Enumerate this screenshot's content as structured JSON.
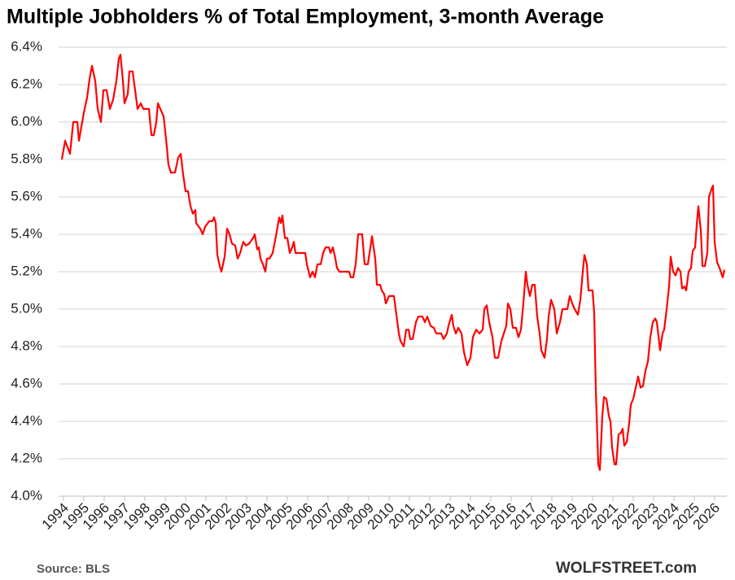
{
  "chart_data": {
    "type": "line",
    "title": "Multiple Jobholders % of Total Employment, 3-month Average",
    "source": "Source:  BLS",
    "brand": "WOLFSTREET.com",
    "x": [
      1993.92,
      1994.08,
      1994.32,
      1994.48,
      1994.68,
      1994.76,
      1995.0,
      1995.16,
      1995.28,
      1995.4,
      1995.56,
      1995.68,
      1995.84,
      1995.96,
      1996.12,
      1996.28,
      1996.44,
      1996.6,
      1996.72,
      1996.8,
      1996.92,
      1997.0,
      1997.16,
      1997.24,
      1997.4,
      1997.52,
      1997.64,
      1997.8,
      1997.92,
      1998.2,
      1998.32,
      1998.44,
      1998.56,
      1998.64,
      1998.76,
      1998.92,
      1999.04,
      1999.16,
      1999.28,
      1999.48,
      1999.64,
      1999.76,
      1999.88,
      2000.0,
      2000.12,
      2000.24,
      2000.36,
      2000.48,
      2000.52,
      2000.72,
      2000.84,
      2000.96,
      2001.16,
      2001.32,
      2001.4,
      2001.48,
      2001.56,
      2001.68,
      2001.76,
      2001.92,
      2002.04,
      2002.16,
      2002.28,
      2002.44,
      2002.56,
      2002.68,
      2002.84,
      2002.96,
      2003.12,
      2003.32,
      2003.4,
      2003.52,
      2003.6,
      2003.68,
      2003.8,
      2003.92,
      2004.0,
      2004.12,
      2004.28,
      2004.44,
      2004.6,
      2004.68,
      2004.76,
      2004.88,
      2005.0,
      2005.12,
      2005.24,
      2005.32,
      2005.4,
      2005.88,
      2005.96,
      2006.12,
      2006.24,
      2006.36,
      2006.48,
      2006.64,
      2006.76,
      2006.88,
      2007.04,
      2007.12,
      2007.24,
      2007.36,
      2007.44,
      2007.56,
      2008.04,
      2008.12,
      2008.24,
      2008.36,
      2008.48,
      2008.68,
      2008.8,
      2008.96,
      2009.08,
      2009.16,
      2009.32,
      2009.4,
      2009.56,
      2009.64,
      2009.76,
      2009.84,
      2010.0,
      2010.24,
      2010.36,
      2010.48,
      2010.56,
      2010.72,
      2010.84,
      2010.96,
      2011.04,
      2011.16,
      2011.32,
      2011.44,
      2011.64,
      2011.76,
      2011.88,
      2012.04,
      2012.2,
      2012.32,
      2012.56,
      2012.68,
      2012.84,
      2012.92,
      2013.08,
      2013.16,
      2013.28,
      2013.4,
      2013.56,
      2013.68,
      2013.84,
      2014.0,
      2014.12,
      2014.28,
      2014.44,
      2014.6,
      2014.68,
      2014.8,
      2014.92,
      2015.08,
      2015.2,
      2015.36,
      2015.52,
      2015.64,
      2015.76,
      2015.84,
      2015.96,
      2016.08,
      2016.24,
      2016.36,
      2016.48,
      2016.6,
      2016.72,
      2016.8,
      2016.92,
      2017.04,
      2017.16,
      2017.28,
      2017.4,
      2017.48,
      2017.64,
      2017.76,
      2017.84,
      2017.96,
      2018.12,
      2018.24,
      2018.4,
      2018.52,
      2018.76,
      2018.88,
      2019.0,
      2019.12,
      2019.28,
      2019.4,
      2019.52,
      2019.6,
      2019.72,
      2019.8,
      2020.0,
      2020.08,
      2020.16,
      2020.28,
      2020.36,
      2020.48,
      2020.56,
      2020.68,
      2020.8,
      2020.88,
      2020.96,
      2021.08,
      2021.16,
      2021.28,
      2021.4,
      2021.48,
      2021.56,
      2021.68,
      2021.8,
      2021.88,
      2022.0,
      2022.12,
      2022.24,
      2022.36,
      2022.48,
      2022.6,
      2022.72,
      2022.84,
      2022.96,
      2023.08,
      2023.16,
      2023.32,
      2023.44,
      2023.52,
      2023.64,
      2023.76,
      2023.84,
      2023.96,
      2024.08,
      2024.2,
      2024.32,
      2024.4,
      2024.52,
      2024.6,
      2024.72,
      2024.84,
      2024.92,
      2025.04,
      2025.12,
      2025.2,
      2025.32,
      2025.4,
      2025.52,
      2025.64,
      2025.72,
      2025.84,
      2025.92,
      2026.0,
      2026.12,
      2026.24,
      2026.36,
      2026.4,
      2026.48
    ],
    "series": [
      {
        "color": "#ff0000",
        "values": [
          5.8,
          5.9,
          5.83,
          6.0,
          6.0,
          5.9,
          6.05,
          6.13,
          6.23,
          6.3,
          6.22,
          6.07,
          6.0,
          6.17,
          6.17,
          6.07,
          6.12,
          6.22,
          6.34,
          6.36,
          6.22,
          6.1,
          6.15,
          6.27,
          6.27,
          6.17,
          6.07,
          6.1,
          6.07,
          6.07,
          5.93,
          5.93,
          6.0,
          6.1,
          6.07,
          6.03,
          5.91,
          5.77,
          5.73,
          5.73,
          5.81,
          5.83,
          5.72,
          5.63,
          5.63,
          5.55,
          5.51,
          5.53,
          5.46,
          5.43,
          5.4,
          5.44,
          5.47,
          5.47,
          5.49,
          5.46,
          5.29,
          5.23,
          5.2,
          5.28,
          5.43,
          5.4,
          5.35,
          5.34,
          5.27,
          5.3,
          5.36,
          5.34,
          5.35,
          5.38,
          5.4,
          5.32,
          5.33,
          5.27,
          5.24,
          5.2,
          5.27,
          5.27,
          5.3,
          5.39,
          5.49,
          5.46,
          5.5,
          5.38,
          5.38,
          5.3,
          5.33,
          5.36,
          5.3,
          5.3,
          5.24,
          5.17,
          5.2,
          5.17,
          5.24,
          5.24,
          5.3,
          5.33,
          5.33,
          5.3,
          5.33,
          5.27,
          5.22,
          5.2,
          5.2,
          5.17,
          5.17,
          5.24,
          5.4,
          5.4,
          5.24,
          5.24,
          5.33,
          5.39,
          5.27,
          5.13,
          5.13,
          5.1,
          5.08,
          5.03,
          5.07,
          5.07,
          4.97,
          4.87,
          4.83,
          4.8,
          4.89,
          4.89,
          4.84,
          4.84,
          4.93,
          4.96,
          4.96,
          4.93,
          4.96,
          4.91,
          4.9,
          4.87,
          4.87,
          4.84,
          4.87,
          4.91,
          4.97,
          4.91,
          4.87,
          4.9,
          4.87,
          4.77,
          4.7,
          4.74,
          4.85,
          4.89,
          4.87,
          4.89,
          5.0,
          5.02,
          4.93,
          4.85,
          4.74,
          4.74,
          4.83,
          4.87,
          4.91,
          5.03,
          5.0,
          4.9,
          4.9,
          4.85,
          4.89,
          5.03,
          5.2,
          5.13,
          5.07,
          5.13,
          5.13,
          4.96,
          4.87,
          4.78,
          4.74,
          4.84,
          4.96,
          5.05,
          5.0,
          4.87,
          4.93,
          5.0,
          5.0,
          5.07,
          5.03,
          5.0,
          4.97,
          5.05,
          5.2,
          5.29,
          5.24,
          5.1,
          5.1,
          4.98,
          4.57,
          4.17,
          4.14,
          4.43,
          4.53,
          4.52,
          4.43,
          4.4,
          4.26,
          4.17,
          4.17,
          4.33,
          4.34,
          4.36,
          4.27,
          4.29,
          4.39,
          4.49,
          4.52,
          4.58,
          4.64,
          4.58,
          4.59,
          4.67,
          4.72,
          4.85,
          4.93,
          4.95,
          4.93,
          4.78,
          4.87,
          4.89,
          5.0,
          5.12,
          5.28,
          5.2,
          5.18,
          5.22,
          5.2,
          5.11,
          5.12,
          5.1,
          5.2,
          5.22,
          5.31,
          5.33,
          5.45,
          5.55,
          5.42,
          5.23,
          5.23,
          5.3,
          5.6,
          5.64,
          5.66,
          5.36,
          5.25,
          5.22,
          5.18,
          5.17,
          5.21
        ]
      }
    ],
    "xlim": [
      1993.76,
      2026.6
    ],
    "xticks": [
      1994,
      1995,
      1996,
      1997,
      1998,
      1999,
      2000,
      2001,
      2002,
      2003,
      2004,
      2005,
      2006,
      2007,
      2008,
      2009,
      2010,
      2011,
      2012,
      2013,
      2014,
      2015,
      2016,
      2017,
      2018,
      2019,
      2020,
      2021,
      2022,
      2023,
      2024,
      2025,
      2026
    ],
    "ylim": [
      4.0,
      6.4
    ],
    "yticks": [
      {
        "value": 4.0,
        "label": "4.0%"
      },
      {
        "value": 4.2,
        "label": "4.2%"
      },
      {
        "value": 4.4,
        "label": "4.4%"
      },
      {
        "value": 4.6,
        "label": "4.6%"
      },
      {
        "value": 4.8,
        "label": "4.8%"
      },
      {
        "value": 5.0,
        "label": "5.0%"
      },
      {
        "value": 5.2,
        "label": "5.2%"
      },
      {
        "value": 5.4,
        "label": "5.4%"
      },
      {
        "value": 5.6,
        "label": "5.6%"
      },
      {
        "value": 5.8,
        "label": "5.8%"
      },
      {
        "value": 6.0,
        "label": "6.0%"
      },
      {
        "value": 6.2,
        "label": "6.2%"
      },
      {
        "value": 6.4,
        "label": "6.4%"
      }
    ],
    "grid": true
  }
}
